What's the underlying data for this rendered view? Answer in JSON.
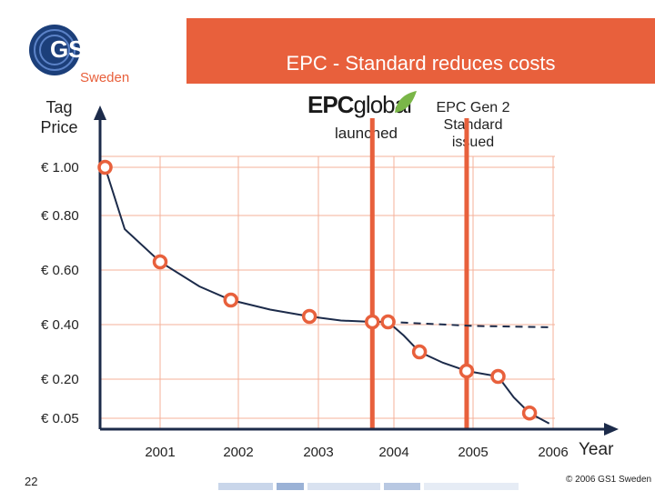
{
  "slide": {
    "title": "EPC - Standard reduces costs",
    "country": "Sweden",
    "logo_text": "GS1",
    "page_number": "22",
    "copyright": "© 2006 GS1 Sweden",
    "colors": {
      "accent": "#e8603c",
      "grid": "#f4b09a",
      "marker_fill": "#ffffff",
      "curve": "#1c2b4a"
    }
  },
  "annotations": {
    "epc_logo_main": "EPC",
    "epc_logo_sub": "global",
    "launched": "launched",
    "gen2_line1": "EPC Gen 2",
    "gen2_line2": "Standard",
    "gen2_line3": "issued"
  },
  "chart_data": {
    "type": "line",
    "title": "EPC - Standard reduces costs",
    "xlabel": "Year",
    "ylabel": "Tag Price",
    "ylabel_line1": "Tag",
    "ylabel_line2": "Price",
    "x_tick_labels": [
      "2001",
      "2002",
      "2003",
      "2004",
      "2005",
      "2006"
    ],
    "x_ticks": [
      2001,
      2002,
      2003,
      2004,
      2005,
      2006
    ],
    "y_tick_labels": [
      "€ 1.00",
      "€ 0.80",
      "€ 0.60",
      "€ 0.40",
      "€ 0.20",
      "€ 0.05"
    ],
    "y_ticks": [
      1.0,
      0.8,
      0.6,
      0.4,
      0.2,
      0.05
    ],
    "xlim": [
      2000.3,
      2006.5
    ],
    "ylim": [
      0.0,
      1.2
    ],
    "series": [
      {
        "name": "Tag price",
        "points": [
          [
            2000.3,
            1.0
          ],
          [
            2001.0,
            0.63
          ],
          [
            2001.9,
            0.49
          ],
          [
            2002.9,
            0.43
          ],
          [
            2003.7,
            0.41
          ],
          [
            2003.9,
            0.41
          ],
          [
            2004.3,
            0.3
          ],
          [
            2004.9,
            0.23
          ],
          [
            2005.3,
            0.21
          ],
          [
            2005.7,
            0.07
          ]
        ]
      }
    ],
    "curve_solid": [
      [
        2000.3,
        1.0
      ],
      [
        2000.55,
        0.75
      ],
      [
        2001.0,
        0.63
      ],
      [
        2001.5,
        0.54
      ],
      [
        2001.9,
        0.49
      ],
      [
        2002.4,
        0.455
      ],
      [
        2002.9,
        0.43
      ],
      [
        2003.3,
        0.415
      ],
      [
        2003.7,
        0.41
      ],
      [
        2003.9,
        0.41
      ],
      [
        2004.1,
        0.36
      ],
      [
        2004.3,
        0.3
      ],
      [
        2004.6,
        0.26
      ],
      [
        2004.9,
        0.23
      ],
      [
        2005.3,
        0.21
      ],
      [
        2005.5,
        0.13
      ],
      [
        2005.7,
        0.07
      ],
      [
        2005.95,
        0.03
      ]
    ],
    "curve_dashed": [
      [
        2003.9,
        0.41
      ],
      [
        2005.0,
        0.395
      ],
      [
        2006.0,
        0.39
      ]
    ],
    "milestones": [
      {
        "label": "EPCglobal launched",
        "x": 2003.7
      },
      {
        "label": "EPC Gen 2 Standard issued",
        "x": 2004.9
      }
    ]
  }
}
